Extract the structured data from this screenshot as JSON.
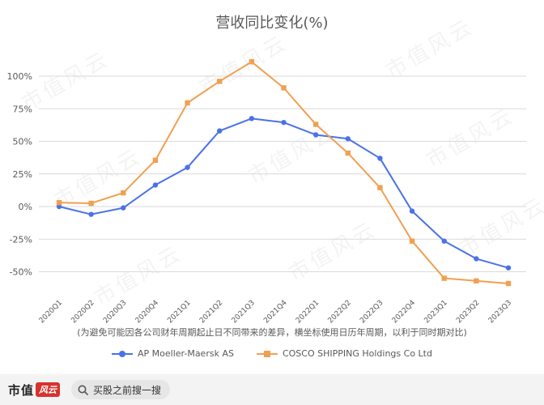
{
  "chart_data": {
    "type": "line",
    "title": "营收同比变化(%)",
    "categories": [
      "2020Q1",
      "2020Q2",
      "2020Q3",
      "2020Q4",
      "2021Q1",
      "2021Q2",
      "2021Q3",
      "2021Q4",
      "2022Q1",
      "2022Q2",
      "2022Q3",
      "2022Q4",
      "2023Q1",
      "2023Q2",
      "2023Q3"
    ],
    "series": [
      {
        "name": "AP Moeller-Maersk AS",
        "color": "#4a72e8",
        "marker": "circle",
        "values": [
          0,
          -6,
          -1,
          16.5,
          30,
          58,
          67.5,
          64.5,
          55,
          52,
          37,
          -3.5,
          -26.5,
          -40,
          -47
        ]
      },
      {
        "name": "COSCO SHIPPING Holdings Co Ltd",
        "color": "#f0a050",
        "marker": "square",
        "values": [
          3,
          2.5,
          10.5,
          35.5,
          79.5,
          96,
          111,
          91,
          63,
          41,
          14.5,
          -26.5,
          -55,
          -57,
          -59
        ]
      }
    ],
    "yticks": [
      100,
      75,
      50,
      25,
      0,
      -25,
      -50
    ],
    "ytick_labels": [
      "100%",
      "75%",
      "50%",
      "25%",
      "0%",
      "-25%",
      "-50%"
    ],
    "ylim": [
      -60,
      112
    ],
    "grid": true,
    "legend_position": "bottom",
    "footnote": "(为避免可能因各公司财年周期起止日不同带来的差异，横坐标使用日历年周期，以利于同时期对比)"
  },
  "brand": {
    "logo_text": "市值",
    "logo_mark": "风云"
  },
  "search": {
    "placeholder": "买股之前搜一搜",
    "icon": "search-icon"
  },
  "watermark_text": "市值风云"
}
